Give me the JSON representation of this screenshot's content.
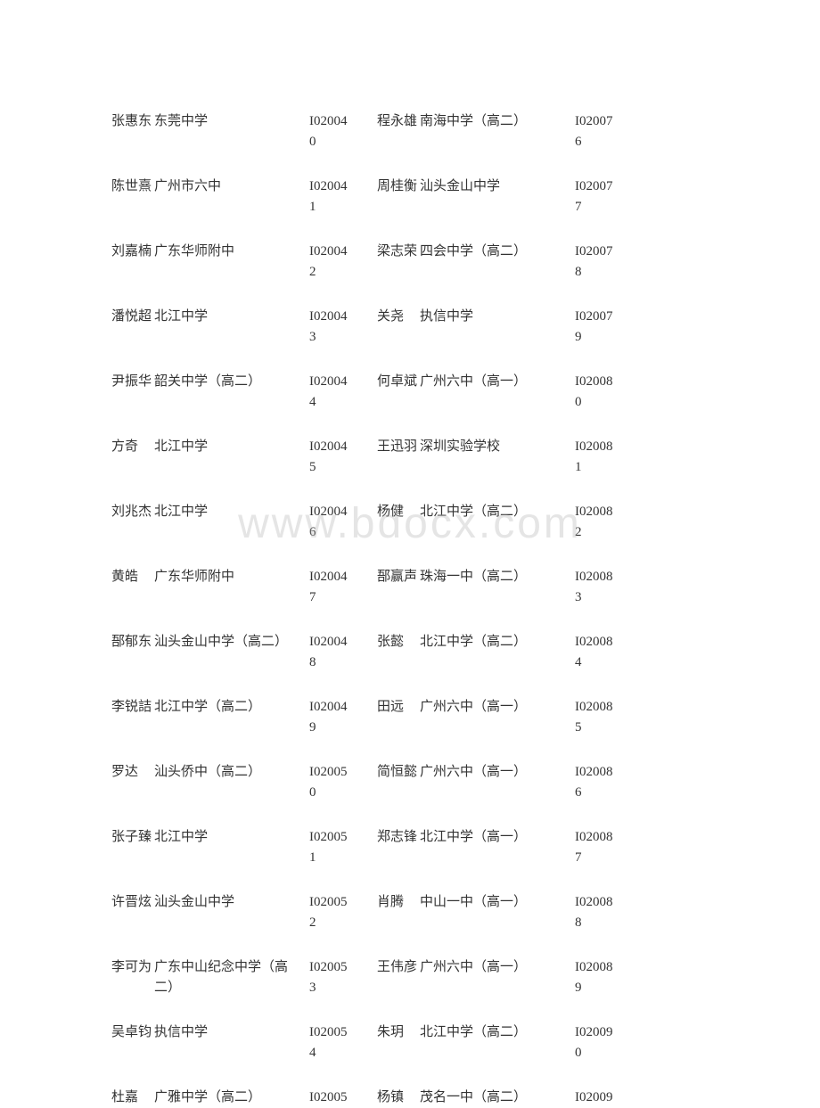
{
  "watermark": "www.bdocx.com",
  "table": {
    "rows": [
      {
        "name1": "张惠东",
        "school1": "东莞中学",
        "id1": "I020040",
        "name2": "程永雄",
        "school2": "南海中学（高二）",
        "id2": "I020076"
      },
      {
        "name1": "陈世熹",
        "school1": "广州市六中",
        "id1": "I020041",
        "name2": "周桂衡",
        "school2": "汕头金山中学",
        "id2": "I020077"
      },
      {
        "name1": "刘嘉楠",
        "school1": "广东华师附中",
        "id1": "I020042",
        "name2": "梁志荣",
        "school2": "四会中学（高二）",
        "id2": "I020078"
      },
      {
        "name1": "潘悦超",
        "school1": "北江中学",
        "id1": "I020043",
        "name2": "关尧",
        "school2": "执信中学",
        "id2": "I020079"
      },
      {
        "name1": "尹振华",
        "school1": "韶关中学（高二）",
        "id1": "I020044",
        "name2": "何卓斌",
        "school2": "广州六中（高一）",
        "id2": "I020080"
      },
      {
        "name1": "方奇",
        "school1": "北江中学",
        "id1": "I020045",
        "name2": "王迅羽",
        "school2": "深圳实验学校",
        "id2": "I020081"
      },
      {
        "name1": "刘兆杰",
        "school1": "北江中学",
        "id1": "I020046",
        "name2": "杨健",
        "school2": "北江中学（高二）",
        "id2": "I020082"
      },
      {
        "name1": "黄皓",
        "school1": "广东华师附中",
        "id1": "I020047",
        "name2": "郚赢声",
        "school2": "珠海一中（高二）",
        "id2": "I020083"
      },
      {
        "name1": "郚郁东",
        "school1": "汕头金山中学（高二）",
        "id1": "I020048",
        "name2": "张懿",
        "school2": "北江中学（高二）",
        "id2": "I020084"
      },
      {
        "name1": "李锐詰",
        "school1": "北江中学（高二）",
        "id1": "I020049",
        "name2": "田远",
        "school2": "广州六中（高一）",
        "id2": "I020085"
      },
      {
        "name1": "罗达",
        "school1": "汕头侨中（高二）",
        "id1": "I020050",
        "name2": "简恒懿",
        "school2": "广州六中（高一）",
        "id2": "I020086"
      },
      {
        "name1": "张子臻",
        "school1": "北江中学",
        "id1": "I020051",
        "name2": "郑志锋",
        "school2": "北江中学（高一）",
        "id2": "I020087"
      },
      {
        "name1": "许晋炫",
        "school1": "汕头金山中学",
        "id1": "I020052",
        "name2": "肖腾",
        "school2": "中山一中（高一）",
        "id2": "I020088"
      },
      {
        "name1": "李可为",
        "school1": "广东中山纪念中学（高二）",
        "id1": "I020053",
        "name2": "王伟彦",
        "school2": "广州六中（高一）",
        "id2": "I020089"
      },
      {
        "name1": "吴卓钧",
        "school1": "执信中学",
        "id1": "I020054",
        "name2": "朱玥",
        "school2": "北江中学（高二）",
        "id2": "I020090"
      },
      {
        "name1": "杜嘉",
        "school1": "广雅中学（高二）",
        "id1": "I02005",
        "name2": "杨镇",
        "school2": "茂名一中（高二）",
        "id2": "I02009"
      }
    ]
  }
}
